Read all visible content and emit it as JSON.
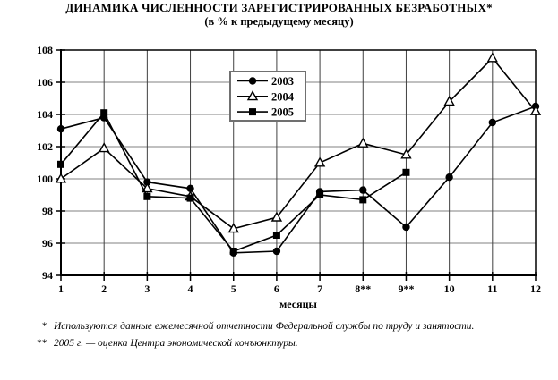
{
  "title": "ДИНАМИКА ЧИСЛЕННОСТИ ЗАРЕГИСТРИРОВАННЫХ БЕЗРАБОТНЫХ*",
  "subtitle": "(в % к предыдущему месяцу)",
  "xaxis_title": "месяцы",
  "footnotes": [
    {
      "marker": "*",
      "text": "Используются данные ежемесячной отчетности Федеральной службы по труду и занятости."
    },
    {
      "marker": "**",
      "text": "2005 г. — оценка Центра экономической конъюнктуры."
    }
  ],
  "colors": {
    "background": "#ffffff",
    "line": "#000000",
    "axis": "#000000",
    "grid_horizontal": "#808080",
    "grid_vertical": "#404040",
    "legend_border": "#707070",
    "legend_background": "#ffffff"
  },
  "chart_data": {
    "type": "line",
    "categories": [
      "1",
      "2",
      "3",
      "4",
      "5",
      "6",
      "7",
      "8**",
      "9**",
      "10",
      "11",
      "12"
    ],
    "series": [
      {
        "name": "2003",
        "marker": "filled-circle",
        "values": [
          103.1,
          103.8,
          99.8,
          99.4,
          95.4,
          95.5,
          99.2,
          99.3,
          97.0,
          100.1,
          103.5,
          104.5
        ]
      },
      {
        "name": "2004",
        "marker": "open-triangle",
        "values": [
          100.0,
          101.9,
          99.4,
          98.9,
          96.9,
          97.6,
          101.0,
          102.2,
          101.5,
          104.8,
          107.5,
          104.2
        ]
      },
      {
        "name": "2005",
        "marker": "filled-square",
        "values": [
          100.9,
          104.1,
          98.9,
          98.8,
          95.5,
          96.5,
          99.0,
          98.7,
          100.4,
          null,
          null,
          null
        ]
      }
    ],
    "ylim": [
      94,
      108
    ],
    "ytick_step": 2,
    "grid": true,
    "legend_position": "top-center-inside",
    "xlabel": "месяцы",
    "ylabel": ""
  }
}
